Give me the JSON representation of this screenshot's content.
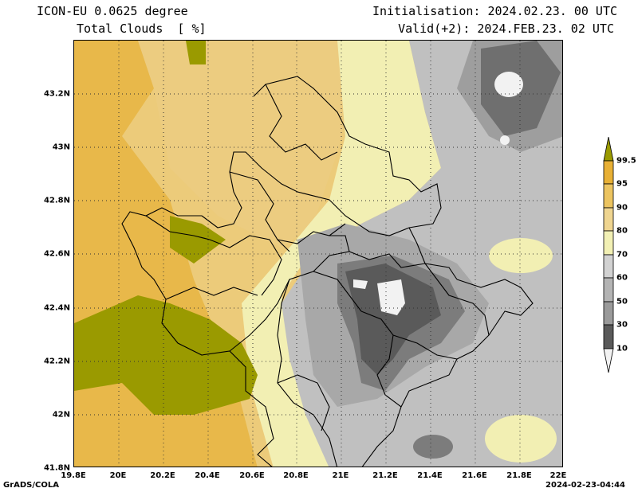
{
  "header": {
    "model": "ICON-EU 0.0625 degree",
    "variable": "Total Clouds  [ %]",
    "init": "Initialisation: 2024.02.23. 00 UTC",
    "valid": "Valid(+2): 2024.FEB.23. 02 UTC"
  },
  "axes": {
    "lat_labels": [
      "43.2N",
      "43N",
      "42.8N",
      "42.6N",
      "42.4N",
      "42.2N",
      "42N",
      "41.8N"
    ],
    "lon_labels": [
      "19.8E",
      "20E",
      "20.2E",
      "20.4E",
      "20.6E",
      "20.8E",
      "21E",
      "21.2E",
      "21.4E",
      "21.6E",
      "21.8E",
      "22E"
    ],
    "lat_range": [
      41.8,
      43.4
    ],
    "lon_range": [
      19.8,
      22.0
    ]
  },
  "colorbar": {
    "labels": [
      "99.5",
      "95",
      "90",
      "80",
      "70",
      "60",
      "50",
      "30",
      "10"
    ],
    "colors": [
      "#9a9a00",
      "#e8b035",
      "#ecc460",
      "#efd590",
      "#f2f0b4",
      "#d2d2d2",
      "#b4b4b4",
      "#9a9a9a",
      "#7c7c7c",
      "#5a5a5a",
      "#f2f2f2"
    ]
  },
  "footer": {
    "left": "GrADS/COLA",
    "right": "2024-02-23-04:44"
  }
}
